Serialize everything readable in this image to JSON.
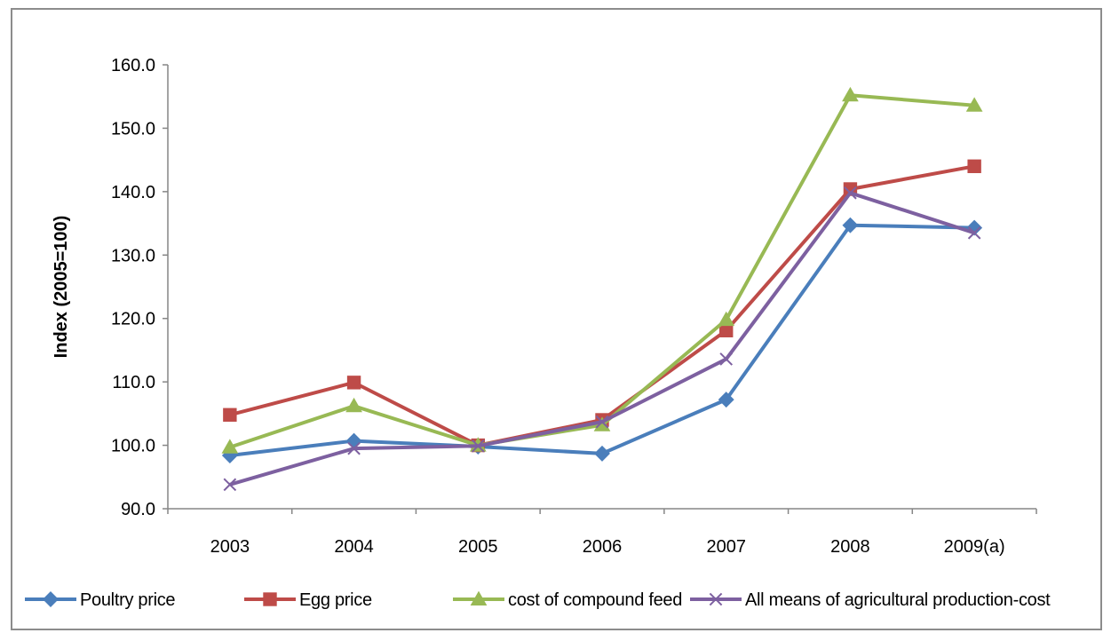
{
  "chart_data": {
    "type": "line",
    "title": "",
    "xlabel": "",
    "ylabel": "Index (2005=100)",
    "categories": [
      "2003",
      "2004",
      "2005",
      "2006",
      "2007",
      "2008",
      "2009(a)"
    ],
    "ylim": [
      90,
      160
    ],
    "yticks": [
      90,
      100,
      110,
      120,
      130,
      140,
      150,
      160
    ],
    "ytick_labels": [
      "90.0",
      "100.0",
      "110.0",
      "120.0",
      "130.0",
      "140.0",
      "150.0",
      "160.0"
    ],
    "grid": false,
    "legend_position": "bottom",
    "series": [
      {
        "name": "Poultry price",
        "color": "#4a7ebb",
        "marker": "diamond",
        "values": [
          98.4,
          100.7,
          99.8,
          98.7,
          107.2,
          134.7,
          134.3
        ]
      },
      {
        "name": "Egg price",
        "color": "#be4b48",
        "marker": "square",
        "values": [
          104.8,
          109.9,
          100.0,
          104.0,
          118.1,
          140.4,
          144.0
        ]
      },
      {
        "name": "cost of compound feed",
        "color": "#98b954",
        "marker": "triangle",
        "values": [
          99.7,
          106.2,
          100.0,
          103.2,
          119.8,
          155.2,
          153.6
        ]
      },
      {
        "name": "All means of agricultural production-cost",
        "color": "#7d60a0",
        "marker": "x",
        "values": [
          93.8,
          99.5,
          99.9,
          103.7,
          113.6,
          139.8,
          133.5
        ]
      }
    ]
  }
}
